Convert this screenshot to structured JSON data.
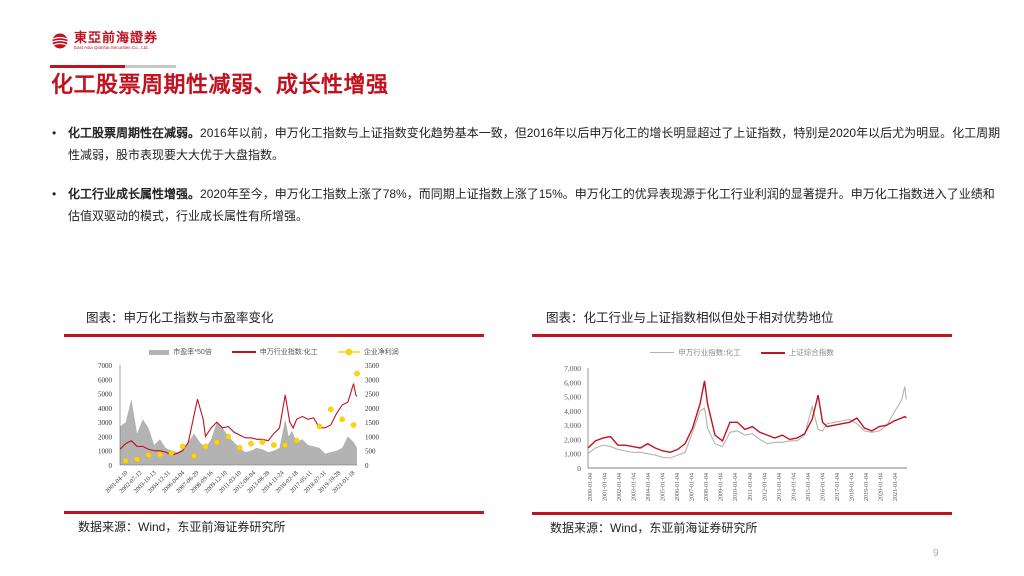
{
  "header": {
    "logo_cn": "東亞前海證券",
    "logo_en": "East Asia Qianhai Securities Co., Ltd.",
    "page_title": "化工股票周期性减弱、成长性增强",
    "brand_color": "#c0121f"
  },
  "bullets": [
    {
      "bold": "化工股票周期性在减弱。",
      "text": "2016年以前，申万化工指数与上证指数变化趋势基本一致，但2016年以后申万化工的增长明显超过了上证指数，特别是2020年以后尤为明显。化工周期性减弱，股市表现要大大优于大盘指数。"
    },
    {
      "bold": "化工行业成长属性增强。",
      "text": "2020年至今，申万化工指数上涨了78%，而同期上证指数上涨了15%。申万化工的优异表现源于化工行业利润的显著提升。申万化工指数进入了业绩和估值双驱动的模式，行业成长属性有所增强。"
    }
  ],
  "left_panel": {
    "title": "图表：申万化工指数与市盈率变化",
    "source": "数据来源：Wind，东亚前海证券研究所",
    "legend": [
      "市盈率*50倍",
      "申万行业指数:化工",
      "企业净利润"
    ]
  },
  "right_panel": {
    "title": "图表：化工行业与上证指数相似但处于相对优势地位",
    "source": "数据来源：Wind，东亚前海证券研究所",
    "legend": [
      "申万行业指数:化工",
      "上证综合指数"
    ]
  },
  "page_number": "9",
  "chart_data": [
    {
      "type": "line",
      "title": "申万化工指数与市盈率变化",
      "left_axis": {
        "ylim": [
          0,
          7000
        ],
        "ticks": [
          0,
          1000,
          2000,
          3000,
          4000,
          5000,
          6000,
          7000
        ]
      },
      "right_axis": {
        "ylim": [
          0,
          3500
        ],
        "ticks": [
          0,
          500,
          1000,
          1500,
          2000,
          2500,
          3000,
          3500
        ]
      },
      "x_tick_labels": [
        "2001-04-10",
        "2002-07-12",
        "2003-10-13",
        "2004-12-31",
        "2006-04-04",
        "2007-06-29",
        "2008-09-16",
        "2009-12-10",
        "2011-03-10",
        "2012-06-04",
        "2013-08-28",
        "2014-11-24",
        "2016-02-18",
        "2017-05-11",
        "2018-07-31",
        "2019-10-28",
        "2021-01-18"
      ],
      "legend_position": "top",
      "series": [
        {
          "name": "市盈率*50倍",
          "kind": "area",
          "axis": "left",
          "color": "#b3b3b3",
          "x": [
            2000.5,
            2001,
            2001.5,
            2002,
            2002.5,
            2003,
            2003.5,
            2004,
            2004.5,
            2005,
            2005.5,
            2006,
            2006.5,
            2007,
            2007.5,
            2008,
            2008.5,
            2009,
            2009.5,
            2010,
            2010.5,
            2011,
            2011.5,
            2012,
            2012.5,
            2013,
            2013.5,
            2014,
            2014.5,
            2015,
            2015.3,
            2015.6,
            2016,
            2016.5,
            2017,
            2017.5,
            2018,
            2018.5,
            2019,
            2019.5,
            2020,
            2020.5,
            2021,
            2021.3
          ],
          "values": [
            2700,
            3000,
            4600,
            2200,
            3200,
            2600,
            1400,
            1800,
            1200,
            1000,
            900,
            1100,
            1600,
            2200,
            1600,
            1200,
            1800,
            3000,
            2600,
            2000,
            1600,
            1200,
            900,
            1000,
            1200,
            1100,
            900,
            1000,
            1200,
            3200,
            2000,
            2400,
            1600,
            1800,
            1400,
            1300,
            1200,
            800,
            900,
            1000,
            1200,
            2000,
            1600,
            1200
          ]
        },
        {
          "name": "申万行业指数:化工",
          "kind": "line",
          "axis": "left",
          "color": "#c0121f",
          "x": [
            2000.5,
            2001,
            2001.5,
            2002,
            2002.5,
            2003,
            2003.5,
            2004,
            2004.5,
            2005,
            2005.5,
            2006,
            2006.5,
            2007,
            2007.3,
            2007.8,
            2008,
            2008.5,
            2009,
            2009.5,
            2010,
            2010.5,
            2011,
            2011.5,
            2012,
            2012.5,
            2013,
            2013.5,
            2014,
            2014.5,
            2015,
            2015.4,
            2015.7,
            2016,
            2016.5,
            2017,
            2017.5,
            2018,
            2018.5,
            2019,
            2019.5,
            2020,
            2020.5,
            2021,
            2021.2,
            2021.3
          ],
          "values": [
            1100,
            1500,
            1700,
            1300,
            1300,
            1100,
            1000,
            1000,
            900,
            700,
            800,
            1000,
            1600,
            3500,
            4600,
            3200,
            2000,
            2600,
            3000,
            2600,
            2700,
            2300,
            2100,
            1900,
            1900,
            1800,
            1800,
            1700,
            2200,
            2600,
            4900,
            3000,
            2600,
            3200,
            3400,
            3200,
            3300,
            2600,
            2600,
            2800,
            3600,
            4200,
            4400,
            5700,
            4900,
            4800
          ]
        },
        {
          "name": "企业净利润",
          "kind": "scatter",
          "axis": "right",
          "color": "#ffd700",
          "x": [
            2001,
            2002,
            2003,
            2004,
            2005,
            2006,
            2007,
            2008,
            2009,
            2010,
            2011,
            2012,
            2013,
            2014,
            2015,
            2016,
            2018,
            2019,
            2020,
            2021,
            2021.3
          ],
          "values": [
            150,
            200,
            350,
            370,
            420,
            650,
            320,
            650,
            800,
            1000,
            600,
            750,
            800,
            700,
            700,
            850,
            1350,
            1950,
            1600,
            1400,
            3200
          ]
        }
      ]
    },
    {
      "type": "line",
      "title": "化工行业与上证指数相似但处于相对优势地位",
      "ylim": [
        0,
        7000
      ],
      "y_ticks": [
        "0",
        "1,000",
        "2,000",
        "3,000",
        "4,000",
        "5,000",
        "6,000",
        "7,000"
      ],
      "x_tick_labels": [
        "2000-01-04",
        "2001-01-04",
        "2002-01-04",
        "2003-01-04",
        "2004-01-04",
        "2005-01-04",
        "2006-01-04",
        "2007-01-04",
        "2008-01-04",
        "2009-01-04",
        "2010-01-04",
        "2011-01-04",
        "2012-01-04",
        "2013-01-04",
        "2014-01-04",
        "2015-01-04",
        "2016-01-04",
        "2017-01-04",
        "2018-01-04",
        "2019-01-04",
        "2020-01-04",
        "2021-01-04"
      ],
      "legend_position": "top",
      "series": [
        {
          "name": "申万行业指数:化工",
          "color": "#b3b3b3",
          "x": [
            2000,
            2000.5,
            2001,
            2001.5,
            2002,
            2002.5,
            2003,
            2003.5,
            2004,
            2004.5,
            2005,
            2005.5,
            2006,
            2006.5,
            2007,
            2007.5,
            2007.8,
            2008,
            2008.5,
            2009,
            2009.5,
            2010,
            2010.5,
            2011,
            2011.5,
            2012,
            2012.5,
            2013,
            2013.5,
            2014,
            2014.5,
            2015,
            2015.4,
            2015.7,
            2016,
            2016.5,
            2017,
            2017.5,
            2018,
            2018.5,
            2019,
            2019.5,
            2020,
            2020.5,
            2021,
            2021.2,
            2021.3
          ],
          "values": [
            1000,
            1400,
            1600,
            1500,
            1300,
            1200,
            1100,
            1100,
            1000,
            900,
            750,
            700,
            900,
            1100,
            2500,
            4000,
            4200,
            2800,
            1700,
            1500,
            2500,
            2600,
            2300,
            2400,
            2000,
            1700,
            1800,
            1800,
            1900,
            1900,
            2300,
            4300,
            2700,
            2600,
            3100,
            3200,
            3300,
            3400,
            3100,
            2600,
            2500,
            2600,
            3000,
            3900,
            4800,
            5700,
            4800
          ]
        },
        {
          "name": "上证综合指数",
          "color": "#c0121f",
          "x": [
            2000,
            2000.5,
            2001,
            2001.5,
            2002,
            2002.5,
            2003,
            2003.5,
            2004,
            2004.5,
            2005,
            2005.5,
            2006,
            2006.5,
            2007,
            2007.5,
            2007.8,
            2008,
            2008.5,
            2009,
            2009.5,
            2010,
            2010.5,
            2011,
            2011.5,
            2012,
            2012.5,
            2013,
            2013.5,
            2014,
            2014.5,
            2015,
            2015.4,
            2015.7,
            2016,
            2016.5,
            2017,
            2017.5,
            2018,
            2018.5,
            2019,
            2019.5,
            2020,
            2020.5,
            2021,
            2021.2,
            2021.3
          ],
          "values": [
            1400,
            1900,
            2100,
            2200,
            1600,
            1600,
            1500,
            1400,
            1700,
            1400,
            1200,
            1100,
            1300,
            1700,
            2800,
            4500,
            6100,
            4500,
            2300,
            1900,
            3200,
            3200,
            2700,
            2900,
            2500,
            2300,
            2100,
            2300,
            2000,
            2100,
            2400,
            3400,
            5100,
            3200,
            2900,
            3000,
            3100,
            3200,
            3500,
            2800,
            2600,
            2900,
            3000,
            3300,
            3500,
            3600,
            3500
          ]
        }
      ]
    }
  ]
}
